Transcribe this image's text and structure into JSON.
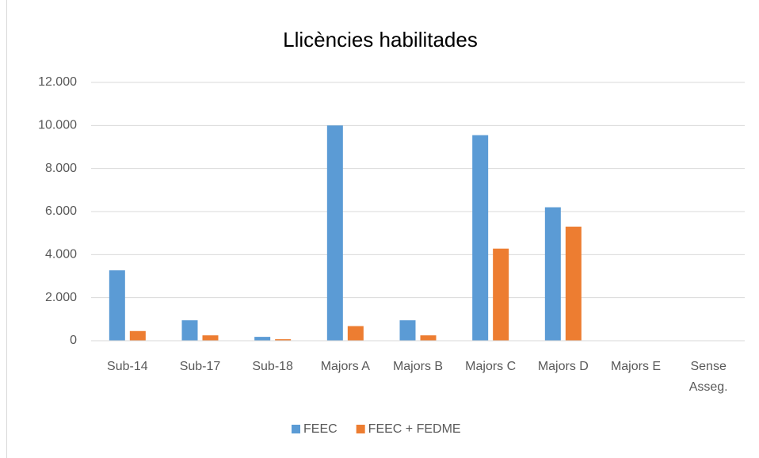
{
  "chart_data": {
    "type": "bar",
    "title": "Llicències habilitades",
    "categories": [
      "Sub-14",
      "Sub-17",
      "Sub-18",
      "Majors A",
      "Majors B",
      "Majors C",
      "Majors D",
      "Majors E",
      "Sense Asseg."
    ],
    "series": [
      {
        "name": "FEEC",
        "color": "#5b9bd5",
        "values": [
          3270,
          950,
          180,
          10000,
          950,
          9550,
          6200,
          0,
          0
        ]
      },
      {
        "name": "FEEC + FEDME",
        "color": "#ed7d31",
        "values": [
          450,
          250,
          70,
          680,
          250,
          4280,
          5300,
          0,
          0
        ]
      }
    ],
    "ylim": [
      0,
      12000
    ],
    "yticks": [
      0,
      {
        "value": 2000,
        "label": "2.000"
      },
      {
        "value": 4000,
        "label": "4.000"
      },
      {
        "value": 6000,
        "label": "6.000"
      },
      {
        "value": 8000,
        "label": "8.000"
      },
      {
        "value": 10000,
        "label": "10.000"
      },
      {
        "value": 12000,
        "label": "12.000"
      }
    ],
    "grid": true,
    "legend": "bottom"
  }
}
